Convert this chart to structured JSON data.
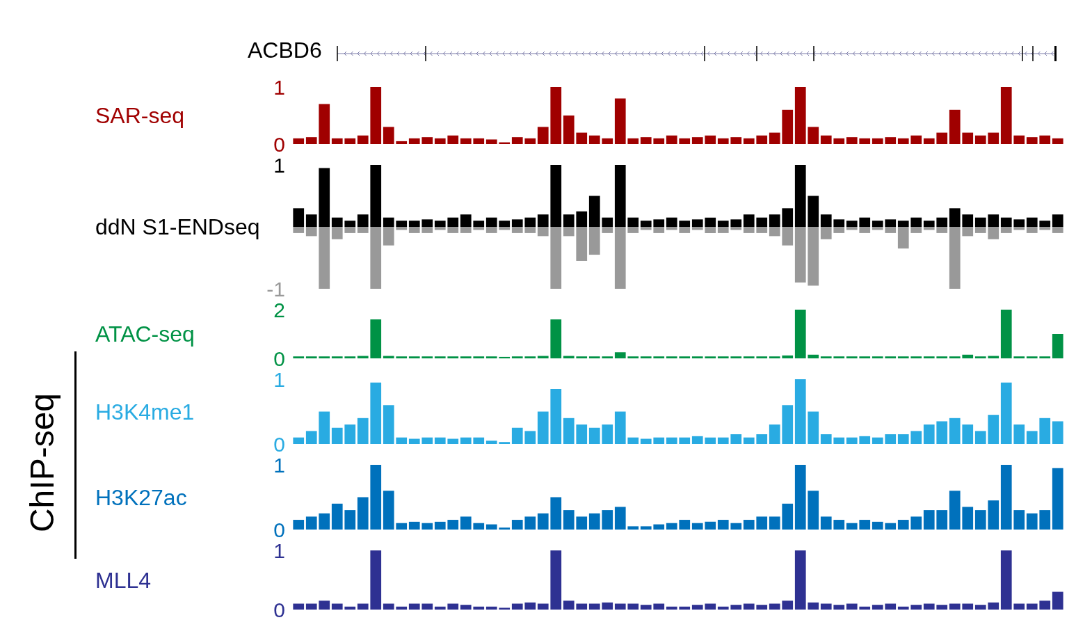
{
  "chart_data": [
    {
      "type": "other",
      "title": "ACBD6",
      "annotations": [
        "ChIP-seq"
      ]
    },
    {
      "type": "bar",
      "ylabel": "SAR-seq",
      "tick_labels": "y",
      "ylim": [
        0,
        1
      ],
      "yticks": [
        0,
        1
      ],
      "categories": [
        null,
        null,
        null,
        null,
        null,
        null,
        null,
        null,
        null,
        null,
        null,
        null,
        null,
        null,
        null,
        null,
        null,
        null,
        null,
        null,
        null,
        null,
        null,
        null,
        null,
        null,
        null,
        null,
        null,
        null,
        null,
        null,
        null,
        null,
        null,
        null,
        null,
        null,
        null,
        null,
        null,
        null,
        null,
        null,
        null,
        null,
        null,
        null,
        null,
        null,
        null,
        null,
        null,
        null,
        null,
        null,
        null,
        null,
        null,
        null
      ],
      "series": [
        {
          "color": "#a00000",
          "values": [
            0.1,
            0.12,
            0.7,
            0.1,
            0.1,
            0.15,
            1.0,
            0.3,
            0.05,
            0.1,
            0.12,
            0.1,
            0.15,
            0.1,
            0.1,
            0.08,
            0.03,
            0.12,
            0.1,
            0.3,
            1.0,
            0.5,
            0.2,
            0.15,
            0.1,
            0.8,
            0.1,
            0.12,
            0.1,
            0.15,
            0.1,
            0.12,
            0.15,
            0.1,
            0.12,
            0.1,
            0.15,
            0.2,
            0.6,
            1.0,
            0.3,
            0.15,
            0.1,
            0.12,
            0.1,
            0.1,
            0.12,
            0.1,
            0.15,
            0.1,
            0.2,
            0.6,
            0.2,
            0.15,
            0.2,
            1.0,
            0.15,
            0.12,
            0.15,
            0.1
          ]
        }
      ]
    },
    {
      "type": "bar",
      "ylabel": "ddN S1-ENDseq",
      "tick_labels": "y",
      "stacked": true,
      "ylim": [
        -1,
        1
      ],
      "yticks": [
        -1,
        1
      ],
      "categories": [
        null,
        null,
        null,
        null,
        null,
        null,
        null,
        null,
        null,
        null,
        null,
        null,
        null,
        null,
        null,
        null,
        null,
        null,
        null,
        null,
        null,
        null,
        null,
        null,
        null,
        null,
        null,
        null,
        null,
        null,
        null,
        null,
        null,
        null,
        null,
        null,
        null,
        null,
        null,
        null,
        null,
        null,
        null,
        null,
        null,
        null,
        null,
        null,
        null,
        null,
        null,
        null,
        null,
        null,
        null,
        null,
        null,
        null,
        null,
        null
      ],
      "series": [
        {
          "color": "#000000",
          "values": [
            0.3,
            0.2,
            0.95,
            0.15,
            0.1,
            0.2,
            1.0,
            0.15,
            0.1,
            0.1,
            0.12,
            0.1,
            0.15,
            0.2,
            0.1,
            0.15,
            0.1,
            0.12,
            0.15,
            0.2,
            1.0,
            0.2,
            0.25,
            0.5,
            0.15,
            1.0,
            0.15,
            0.1,
            0.12,
            0.15,
            0.1,
            0.12,
            0.15,
            0.1,
            0.12,
            0.2,
            0.15,
            0.2,
            0.3,
            1.0,
            0.5,
            0.2,
            0.12,
            0.1,
            0.15,
            0.1,
            0.12,
            0.1,
            0.15,
            0.1,
            0.15,
            0.3,
            0.2,
            0.15,
            0.2,
            0.15,
            0.12,
            0.15,
            0.1,
            0.2
          ]
        },
        {
          "color": "#999999",
          "values": [
            -0.1,
            -0.15,
            -1.0,
            -0.2,
            -0.1,
            -0.1,
            -1.0,
            -0.3,
            -0.05,
            -0.1,
            -0.1,
            -0.05,
            -0.1,
            -0.1,
            -0.05,
            -0.1,
            -0.05,
            -0.1,
            -0.1,
            -0.15,
            -1.0,
            -0.15,
            -0.55,
            -0.45,
            -0.1,
            -1.0,
            -0.1,
            -0.05,
            -0.1,
            -0.05,
            -0.1,
            -0.05,
            -0.1,
            -0.1,
            -0.05,
            -0.1,
            -0.1,
            -0.15,
            -0.3,
            -0.9,
            -0.95,
            -0.2,
            -0.1,
            -0.05,
            -0.1,
            -0.05,
            -0.1,
            -0.35,
            -0.1,
            -0.05,
            -0.1,
            -1.0,
            -0.15,
            -0.1,
            -0.2,
            -0.1,
            -0.05,
            -0.1,
            -0.05,
            -0.1
          ]
        }
      ]
    },
    {
      "type": "bar",
      "ylabel": "ATAC-seq",
      "tick_labels": "y",
      "ylim": [
        0,
        2
      ],
      "yticks": [
        0,
        2
      ],
      "categories": [
        null,
        null,
        null,
        null,
        null,
        null,
        null,
        null,
        null,
        null,
        null,
        null,
        null,
        null,
        null,
        null,
        null,
        null,
        null,
        null,
        null,
        null,
        null,
        null,
        null,
        null,
        null,
        null,
        null,
        null,
        null,
        null,
        null,
        null,
        null,
        null,
        null,
        null,
        null,
        null,
        null,
        null,
        null,
        null,
        null,
        null,
        null,
        null,
        null,
        null,
        null,
        null,
        null,
        null,
        null,
        null,
        null,
        null,
        null,
        null
      ],
      "series": [
        {
          "color": "#009245",
          "values": [
            0.08,
            0.08,
            0.08,
            0.08,
            0.08,
            0.1,
            1.6,
            0.1,
            0.08,
            0.08,
            0.08,
            0.08,
            0.08,
            0.08,
            0.08,
            0.08,
            0.06,
            0.08,
            0.08,
            0.1,
            1.6,
            0.1,
            0.08,
            0.08,
            0.08,
            0.25,
            0.08,
            0.08,
            0.08,
            0.08,
            0.08,
            0.08,
            0.08,
            0.08,
            0.08,
            0.08,
            0.08,
            0.08,
            0.12,
            2.0,
            0.15,
            0.08,
            0.08,
            0.08,
            0.08,
            0.08,
            0.08,
            0.08,
            0.08,
            0.08,
            0.08,
            0.08,
            0.15,
            0.08,
            0.1,
            2.0,
            0.08,
            0.08,
            0.08,
            1.0
          ]
        }
      ]
    },
    {
      "type": "bar",
      "ylabel": "H3K4me1",
      "tick_labels": "y",
      "ylim": [
        0,
        1
      ],
      "yticks": [
        0,
        1
      ],
      "categories": [
        null,
        null,
        null,
        null,
        null,
        null,
        null,
        null,
        null,
        null,
        null,
        null,
        null,
        null,
        null,
        null,
        null,
        null,
        null,
        null,
        null,
        null,
        null,
        null,
        null,
        null,
        null,
        null,
        null,
        null,
        null,
        null,
        null,
        null,
        null,
        null,
        null,
        null,
        null,
        null,
        null,
        null,
        null,
        null,
        null,
        null,
        null,
        null,
        null,
        null,
        null,
        null,
        null,
        null,
        null,
        null,
        null,
        null,
        null,
        null
      ],
      "series": [
        {
          "color": "#29abe2",
          "values": [
            0.1,
            0.2,
            0.5,
            0.25,
            0.3,
            0.4,
            0.95,
            0.6,
            0.1,
            0.08,
            0.1,
            0.1,
            0.08,
            0.1,
            0.1,
            0.05,
            0.03,
            0.25,
            0.2,
            0.5,
            0.85,
            0.4,
            0.3,
            0.25,
            0.3,
            0.5,
            0.1,
            0.08,
            0.1,
            0.1,
            0.1,
            0.12,
            0.1,
            0.1,
            0.15,
            0.1,
            0.15,
            0.3,
            0.6,
            1.0,
            0.5,
            0.15,
            0.1,
            0.1,
            0.12,
            0.1,
            0.15,
            0.15,
            0.2,
            0.3,
            0.35,
            0.4,
            0.3,
            0.2,
            0.45,
            0.95,
            0.3,
            0.2,
            0.4,
            0.35
          ]
        }
      ]
    },
    {
      "type": "bar",
      "ylabel": "H3K27ac",
      "tick_labels": "y",
      "ylim": [
        0,
        1
      ],
      "yticks": [
        0,
        1
      ],
      "categories": [
        null,
        null,
        null,
        null,
        null,
        null,
        null,
        null,
        null,
        null,
        null,
        null,
        null,
        null,
        null,
        null,
        null,
        null,
        null,
        null,
        null,
        null,
        null,
        null,
        null,
        null,
        null,
        null,
        null,
        null,
        null,
        null,
        null,
        null,
        null,
        null,
        null,
        null,
        null,
        null,
        null,
        null,
        null,
        null,
        null,
        null,
        null,
        null,
        null,
        null,
        null,
        null,
        null,
        null,
        null,
        null,
        null,
        null,
        null,
        null
      ],
      "series": [
        {
          "color": "#0071bc",
          "values": [
            0.15,
            0.2,
            0.25,
            0.4,
            0.3,
            0.5,
            1.0,
            0.6,
            0.1,
            0.12,
            0.1,
            0.12,
            0.15,
            0.2,
            0.1,
            0.08,
            0.03,
            0.15,
            0.2,
            0.25,
            0.5,
            0.3,
            0.2,
            0.25,
            0.3,
            0.35,
            0.05,
            0.05,
            0.08,
            0.1,
            0.15,
            0.1,
            0.12,
            0.15,
            0.1,
            0.15,
            0.2,
            0.2,
            0.4,
            1.0,
            0.6,
            0.2,
            0.15,
            0.1,
            0.15,
            0.12,
            0.1,
            0.15,
            0.2,
            0.3,
            0.3,
            0.6,
            0.35,
            0.3,
            0.45,
            1.0,
            0.3,
            0.25,
            0.3,
            0.95
          ]
        }
      ]
    },
    {
      "type": "bar",
      "ylabel": "MLL4",
      "tick_labels": "y",
      "ylim": [
        0,
        1
      ],
      "yticks": [
        0,
        1
      ],
      "categories": [
        null,
        null,
        null,
        null,
        null,
        null,
        null,
        null,
        null,
        null,
        null,
        null,
        null,
        null,
        null,
        null,
        null,
        null,
        null,
        null,
        null,
        null,
        null,
        null,
        null,
        null,
        null,
        null,
        null,
        null,
        null,
        null,
        null,
        null,
        null,
        null,
        null,
        null,
        null,
        null,
        null,
        null,
        null,
        null,
        null,
        null,
        null,
        null,
        null,
        null,
        null,
        null,
        null,
        null,
        null,
        null,
        null,
        null,
        null,
        null
      ],
      "series": [
        {
          "color": "#2e3192",
          "values": [
            0.1,
            0.1,
            0.15,
            0.1,
            0.05,
            0.1,
            1.0,
            0.1,
            0.05,
            0.1,
            0.1,
            0.05,
            0.1,
            0.08,
            0.05,
            0.05,
            0.03,
            0.1,
            0.12,
            0.1,
            1.0,
            0.15,
            0.1,
            0.1,
            0.12,
            0.1,
            0.1,
            0.08,
            0.1,
            0.05,
            0.05,
            0.08,
            0.1,
            0.05,
            0.08,
            0.1,
            0.08,
            0.1,
            0.15,
            1.0,
            0.12,
            0.1,
            0.08,
            0.1,
            0.05,
            0.08,
            0.1,
            0.05,
            0.08,
            0.1,
            0.08,
            0.1,
            0.1,
            0.08,
            0.12,
            1.0,
            0.1,
            0.1,
            0.15,
            0.3
          ]
        }
      ]
    }
  ]
}
